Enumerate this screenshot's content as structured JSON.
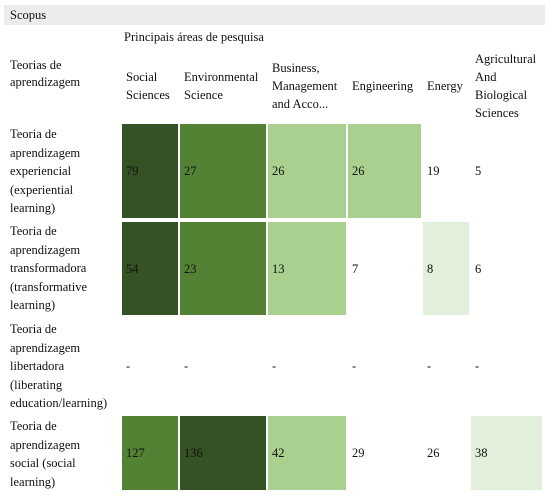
{
  "window_title": "Scopus",
  "caption": "Principais áreas de pesquisa",
  "row_header": "Teorias de aprendizagem",
  "columns": [
    {
      "label": "Social Sciences"
    },
    {
      "label": "Environmental Science"
    },
    {
      "label": "Business, Management and Acco..."
    },
    {
      "label": "Engineering"
    },
    {
      "label": "Energy"
    },
    {
      "label": "Agricultural And Biological Sciences"
    }
  ],
  "rows": [
    {
      "label": "Teoria de aprendizagem experiencial (experiential learning)",
      "cells": [
        "79",
        "27",
        "26",
        "26",
        "19",
        "5"
      ],
      "colors": [
        "#355225",
        "#548235",
        "#a9d08e",
        "#a9d08e",
        "#ffffff",
        "#ffffff"
      ]
    },
    {
      "label": "Teoria de aprendizagem transformadora (transformative learning)",
      "cells": [
        "54",
        "23",
        "13",
        "7",
        "8",
        "6"
      ],
      "colors": [
        "#355225",
        "#548235",
        "#a9d08e",
        "#ffffff",
        "#e2efda",
        "#ffffff"
      ]
    },
    {
      "label": "Teoria de aprendizagem libertadora (liberating education/learning)",
      "cells": [
        "-",
        "-",
        "-",
        "-",
        "-",
        "-"
      ],
      "colors": [
        "#ffffff",
        "#ffffff",
        "#ffffff",
        "#ffffff",
        "#ffffff",
        "#ffffff"
      ]
    },
    {
      "label": "Teoria de aprendizagem social (social learning)",
      "cells": [
        "127",
        "136",
        "42",
        "29",
        "26",
        "38"
      ],
      "colors": [
        "#548235",
        "#355225",
        "#a9d08e",
        "#ffffff",
        "#ffffff",
        "#e2efda"
      ]
    }
  ]
}
